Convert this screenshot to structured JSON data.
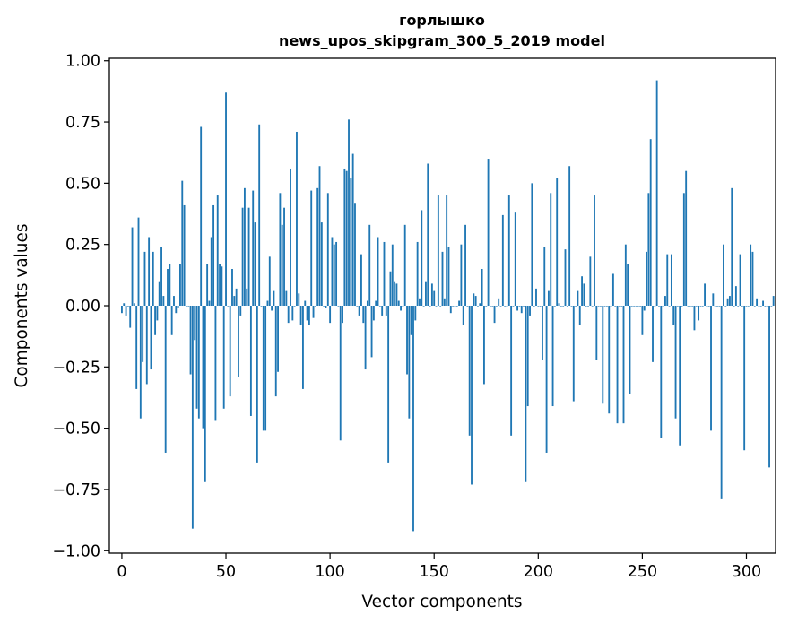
{
  "chart_data": {
    "type": "bar",
    "title": "горлышко",
    "subtitle": "news_upos_skipgram_300_5_2019 model",
    "xlabel": "Vector components",
    "ylabel": "Components values",
    "xlim": [
      -6,
      314
    ],
    "ylim": [
      -1.01,
      1.01
    ],
    "x_ticks": [
      0,
      50,
      100,
      150,
      200,
      250,
      300
    ],
    "y_ticks": [
      1.0,
      0.75,
      0.5,
      0.25,
      0.0,
      -0.25,
      -0.5,
      -0.75,
      -1.0
    ],
    "x_tick_labels": [
      "0",
      "50",
      "100",
      "150",
      "200",
      "250",
      "300"
    ],
    "y_tick_labels": [
      "1.00",
      "0.75",
      "0.50",
      "0.25",
      "0.00",
      "−0.25",
      "−0.50",
      "−0.75",
      "−1.00"
    ],
    "bar_color": "#1f77b4",
    "grid": false,
    "values": [
      -0.03,
      0.01,
      -0.04,
      0.0,
      -0.09,
      0.32,
      0.01,
      -0.34,
      0.36,
      -0.46,
      -0.23,
      0.22,
      -0.32,
      0.28,
      -0.26,
      0.22,
      -0.12,
      -0.06,
      0.1,
      0.24,
      0.04,
      -0.6,
      0.15,
      0.17,
      -0.12,
      0.04,
      -0.03,
      -0.01,
      0.17,
      0.51,
      0.41,
      0.0,
      0.0,
      -0.28,
      -0.91,
      -0.14,
      -0.42,
      -0.46,
      0.73,
      -0.5,
      -0.72,
      0.17,
      0.02,
      0.28,
      0.41,
      -0.47,
      0.45,
      0.17,
      0.16,
      -0.42,
      0.87,
      0.0,
      -0.37,
      0.15,
      0.04,
      0.07,
      -0.29,
      -0.04,
      0.4,
      0.48,
      0.07,
      0.4,
      -0.45,
      0.47,
      0.34,
      -0.64,
      0.74,
      0.0,
      -0.51,
      -0.51,
      0.02,
      0.2,
      -0.02,
      0.06,
      -0.37,
      -0.27,
      0.46,
      0.33,
      0.4,
      0.06,
      -0.07,
      0.56,
      -0.06,
      0.0,
      0.71,
      0.05,
      -0.08,
      -0.34,
      0.02,
      -0.06,
      -0.08,
      0.47,
      -0.05,
      0.0,
      0.48,
      0.57,
      0.34,
      0.0,
      -0.01,
      0.46,
      -0.07,
      0.28,
      0.25,
      0.26,
      0.0,
      -0.55,
      -0.07,
      0.56,
      0.55,
      0.76,
      0.52,
      0.62,
      0.42,
      0.0,
      -0.04,
      0.21,
      -0.07,
      -0.26,
      0.02,
      0.33,
      -0.21,
      -0.06,
      0.02,
      0.28,
      0.0,
      -0.04,
      0.26,
      -0.04,
      -0.64,
      0.14,
      0.25,
      0.1,
      0.09,
      0.02,
      -0.02,
      0.0,
      0.33,
      -0.28,
      -0.46,
      -0.12,
      -0.92,
      -0.06,
      0.26,
      0.03,
      0.39,
      0.0,
      0.1,
      0.58,
      0.0,
      0.09,
      0.06,
      0.0,
      0.45,
      0.0,
      0.22,
      0.03,
      0.45,
      0.24,
      -0.03,
      0.0,
      0.0,
      0.0,
      0.02,
      0.25,
      -0.08,
      0.33,
      0.0,
      -0.53,
      -0.73,
      0.05,
      0.04,
      0.0,
      0.01,
      0.15,
      -0.32,
      0.0,
      0.6,
      0.0,
      0.0,
      -0.07,
      0.0,
      0.03,
      0.0,
      0.37,
      0.0,
      0.0,
      0.45,
      -0.53,
      0.0,
      0.38,
      -0.02,
      0.0,
      -0.03,
      0.0,
      -0.72,
      -0.41,
      -0.04,
      0.5,
      0.0,
      0.07,
      0.0,
      0.0,
      -0.22,
      0.24,
      -0.6,
      0.06,
      0.46,
      -0.41,
      0.0,
      0.52,
      0.01,
      0.0,
      0.0,
      0.23,
      0.0,
      0.57,
      0.0,
      -0.39,
      0.0,
      0.06,
      -0.08,
      0.12,
      0.09,
      0.0,
      0.0,
      0.2,
      0.0,
      0.45,
      -0.22,
      0.0,
      0.0,
      -0.4,
      0.0,
      0.0,
      -0.44,
      0.0,
      0.13,
      0.0,
      -0.48,
      0.0,
      0.0,
      -0.48,
      0.25,
      0.17,
      -0.36,
      0.0,
      0.0,
      0.0,
      0.0,
      0.0,
      -0.12,
      -0.02,
      0.22,
      0.46,
      0.68,
      -0.23,
      0.0,
      0.92,
      0.0,
      -0.54,
      0.0,
      0.04,
      0.21,
      0.0,
      0.21,
      -0.08,
      -0.46,
      0.0,
      -0.57,
      0.0,
      0.46,
      0.55,
      0.0,
      0.0,
      0.0,
      -0.1,
      0.0,
      -0.06,
      0.0,
      0.0,
      0.09,
      0.0,
      0.0,
      -0.51,
      0.05,
      0.0,
      0.0,
      0.0,
      -0.79,
      0.25,
      0.0,
      0.03,
      0.04,
      0.48,
      0.0,
      0.08,
      0.0,
      0.21,
      0.0,
      -0.59,
      0.0,
      0.0,
      0.25,
      0.22,
      0.0,
      0.03,
      0.0,
      0.0,
      0.02,
      0.0,
      0.0,
      -0.66,
      0.0,
      0.04
    ]
  }
}
